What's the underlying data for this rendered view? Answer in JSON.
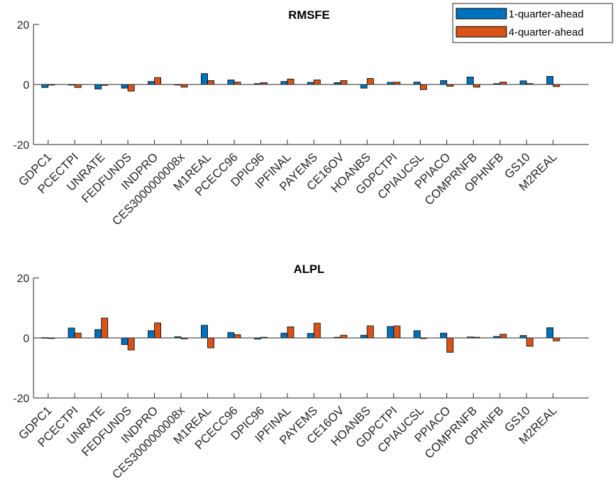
{
  "chart_data": [
    {
      "type": "bar",
      "title": "RMSFE",
      "categories": [
        "GDPC1",
        "PCECTPI",
        "UNRATE",
        "FEDFUNDS",
        "INDPRO",
        "CES3000000008x",
        "M1REAL",
        "PCECC96",
        "DPIC96",
        "IPFINAL",
        "PAYEMS",
        "CE16OV",
        "HOANBS",
        "GDPCTPI",
        "CPIAUCSL",
        "PPIACO",
        "COMPRNFB",
        "OPHNFB",
        "GS10",
        "M2REAL"
      ],
      "series": [
        {
          "name": "1-quarter-ahead",
          "values": [
            -1.0,
            -0.2,
            -1.5,
            -1.2,
            1.0,
            -0.1,
            3.6,
            1.5,
            0.3,
            1.0,
            0.7,
            0.6,
            -1.2,
            0.7,
            0.8,
            1.3,
            2.5,
            0.3,
            1.2,
            2.7
          ]
        },
        {
          "name": "4-quarter-ahead",
          "values": [
            -0.2,
            -1.0,
            -0.3,
            -2.2,
            2.3,
            -0.9,
            1.3,
            0.8,
            0.6,
            1.8,
            1.5,
            1.3,
            2.0,
            0.8,
            -1.7,
            -0.6,
            -0.9,
            0.8,
            0.3,
            -0.7
          ]
        }
      ],
      "ylim": [
        -20,
        20
      ],
      "yticks": [
        "20",
        "0",
        "-20"
      ],
      "grid": false,
      "legend_position": "top-right"
    },
    {
      "type": "bar",
      "title": "ALPL",
      "categories": [
        "GDPC1",
        "PCECTPI",
        "UNRATE",
        "FEDFUNDS",
        "INDPRO",
        "CES3000000008x",
        "M1REAL",
        "PCECC96",
        "DPIC96",
        "IPFINAL",
        "PAYEMS",
        "CE16OV",
        "HOANBS",
        "GDPCTPI",
        "CPIAUCSL",
        "PPIACO",
        "COMPRNFB",
        "OPHNFB",
        "GS10",
        "M2REAL"
      ],
      "series": [
        {
          "name": "1-quarter-ahead",
          "values": [
            0.1,
            3.3,
            2.8,
            -2.2,
            2.4,
            0.4,
            4.2,
            1.8,
            -0.4,
            1.6,
            1.5,
            0.2,
            0.9,
            3.8,
            2.4,
            1.6,
            0.3,
            0.5,
            0.8,
            3.4
          ]
        },
        {
          "name": "4-quarter-ahead",
          "values": [
            0.0,
            1.6,
            6.6,
            -4.0,
            5.0,
            -0.3,
            -3.3,
            1.1,
            0.2,
            3.7,
            4.9,
            0.9,
            4.0,
            4.0,
            -0.2,
            -4.8,
            0.2,
            1.2,
            -2.8,
            -1.0
          ]
        }
      ],
      "ylim": [
        -20,
        20
      ],
      "yticks": [
        "20",
        "0",
        "-20"
      ],
      "grid": false
    }
  ],
  "colors": {
    "series1": "#0072BD",
    "series2": "#D95319",
    "axis": "#262626"
  }
}
